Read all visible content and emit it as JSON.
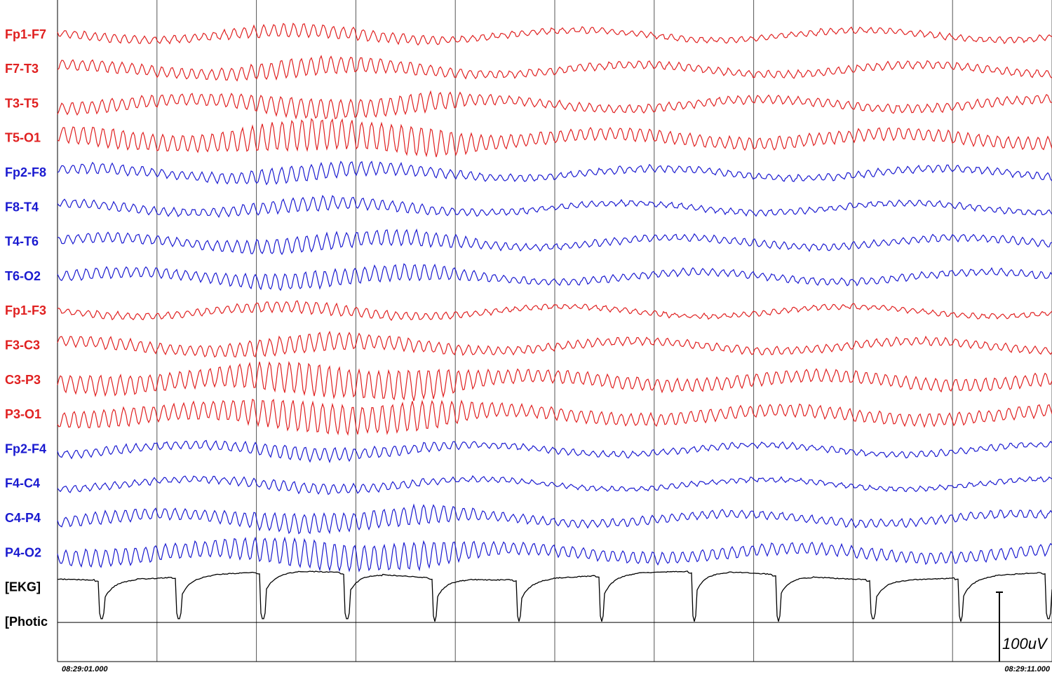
{
  "channels": [
    {
      "label": "Fp1-F7",
      "color": "#e02020"
    },
    {
      "label": "F7-T3",
      "color": "#e02020"
    },
    {
      "label": "T3-T5",
      "color": "#e02020"
    },
    {
      "label": "T5-O1",
      "color": "#e02020"
    },
    {
      "label": "Fp2-F8",
      "color": "#1a1ad0"
    },
    {
      "label": "F8-T4",
      "color": "#1a1ad0"
    },
    {
      "label": "T4-T6",
      "color": "#1a1ad0"
    },
    {
      "label": "T6-O2",
      "color": "#1a1ad0"
    },
    {
      "label": "Fp1-F3",
      "color": "#e02020"
    },
    {
      "label": "F3-C3",
      "color": "#e02020"
    },
    {
      "label": "C3-P3",
      "color": "#e02020"
    },
    {
      "label": "P3-O1",
      "color": "#e02020"
    },
    {
      "label": "Fp2-F4",
      "color": "#1a1ad0"
    },
    {
      "label": "F4-C4",
      "color": "#1a1ad0"
    },
    {
      "label": "C4-P4",
      "color": "#1a1ad0"
    },
    {
      "label": "P4-O2",
      "color": "#1a1ad0"
    },
    {
      "label": "[EKG]",
      "color": "#000000"
    },
    {
      "label": "[Photic",
      "color": "#000000"
    }
  ],
  "start_time": "08:29:01.000",
  "end_time": "08:29:11.000",
  "scale_label": "100uV"
}
